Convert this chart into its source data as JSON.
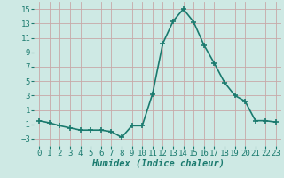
{
  "x": [
    0,
    1,
    2,
    3,
    4,
    5,
    6,
    7,
    8,
    9,
    10,
    11,
    12,
    13,
    14,
    15,
    16,
    17,
    18,
    19,
    20,
    21,
    22,
    23
  ],
  "y": [
    -0.5,
    -0.8,
    -1.2,
    -1.5,
    -1.8,
    -1.8,
    -1.8,
    -2.0,
    -2.8,
    -1.2,
    -1.2,
    3.2,
    10.2,
    13.3,
    15.0,
    13.2,
    10.0,
    7.5,
    4.8,
    3.0,
    2.2,
    -0.5,
    -0.5,
    -0.7
  ],
  "line_color": "#1a7a6e",
  "marker": "+",
  "marker_size": 4,
  "marker_linewidth": 1.2,
  "line_width": 1.2,
  "xlabel": "Humidex (Indice chaleur)",
  "ylim": [
    -4,
    16
  ],
  "xlim": [
    -0.5,
    23.5
  ],
  "yticks": [
    -3,
    -1,
    1,
    3,
    5,
    7,
    9,
    11,
    13,
    15
  ],
  "xticks": [
    0,
    1,
    2,
    3,
    4,
    5,
    6,
    7,
    8,
    9,
    10,
    11,
    12,
    13,
    14,
    15,
    16,
    17,
    18,
    19,
    20,
    21,
    22,
    23
  ],
  "background_color": "#cee9e4",
  "grid_color": "#b8d8d2",
  "tick_label_fontsize": 6.5,
  "xlabel_fontsize": 7.5
}
